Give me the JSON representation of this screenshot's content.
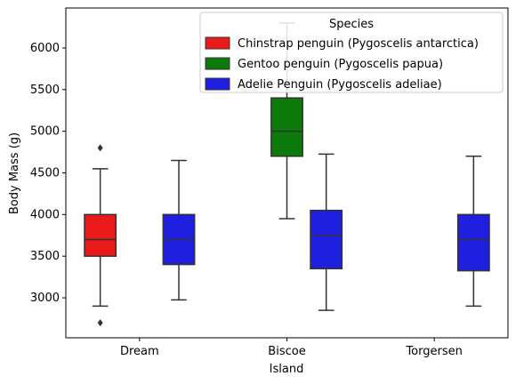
{
  "chart_data": {
    "type": "box",
    "xlabel": "Island",
    "ylabel": "Body Mass (g)",
    "categories": [
      "Dream",
      "Biscoe",
      "Torgersen"
    ],
    "ylim": [
      2520,
      6480
    ],
    "yticks": [
      3000,
      3500,
      4000,
      4500,
      5000,
      5500,
      6000
    ],
    "grid": false,
    "legend": {
      "title": "Species",
      "placement": "top-right",
      "entries": [
        {
          "label": "Chinstrap penguin (Pygoscelis antarctica)",
          "color": "#e81a1a"
        },
        {
          "label": "Gentoo penguin (Pygoscelis papua)",
          "color": "#0b7a0b"
        },
        {
          "label": "Adelie Penguin (Pygoscelis adeliae)",
          "color": "#1f1fe0"
        }
      ]
    },
    "series": [
      {
        "name": "Chinstrap penguin (Pygoscelis antarctica)",
        "color": "#e81a1a",
        "boxes": [
          {
            "category": "Dream",
            "whisker_low": 2900,
            "q1": 3500,
            "median": 3700,
            "q3": 4000,
            "whisker_high": 4550,
            "outliers": [
              2700,
              4800
            ]
          }
        ]
      },
      {
        "name": "Gentoo penguin (Pygoscelis papua)",
        "color": "#0b7a0b",
        "boxes": [
          {
            "category": "Biscoe",
            "whisker_low": 3950,
            "q1": 4700,
            "median": 5000,
            "q3": 5400,
            "whisker_high": 6300,
            "outliers": []
          }
        ]
      },
      {
        "name": "Adelie Penguin (Pygoscelis adeliae)",
        "color": "#1f1fe0",
        "boxes": [
          {
            "category": "Dream",
            "whisker_low": 2975,
            "q1": 3400,
            "median": 3700,
            "q3": 4000,
            "whisker_high": 4650,
            "outliers": []
          },
          {
            "category": "Biscoe",
            "whisker_low": 2850,
            "q1": 3350,
            "median": 3750,
            "q3": 4050,
            "whisker_high": 4725,
            "outliers": []
          },
          {
            "category": "Torgersen",
            "whisker_low": 2900,
            "q1": 3325,
            "median": 3700,
            "q3": 4000,
            "whisker_high": 4700,
            "outliers": []
          }
        ]
      }
    ]
  }
}
